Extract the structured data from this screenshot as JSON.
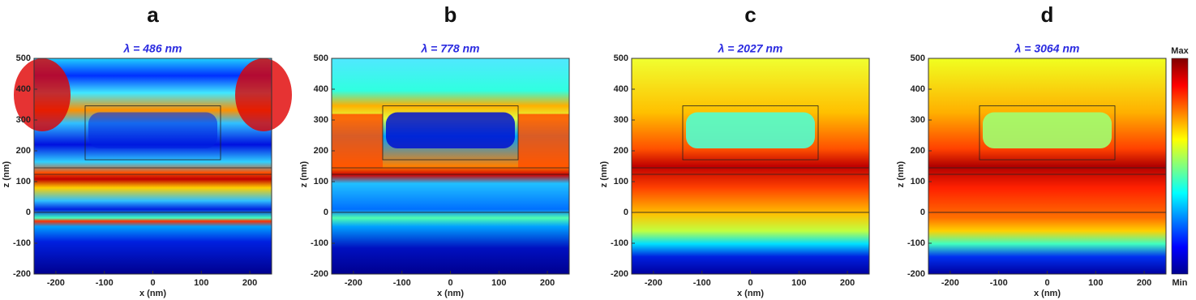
{
  "chart_data": [
    {
      "type": "heatmap",
      "title": "a",
      "subtitle": "λ = 486 nm",
      "xlabel": "x (nm)",
      "ylabel": "z (nm)",
      "xlim": [
        -245,
        245
      ],
      "ylim": [
        -200,
        500
      ],
      "xticks": [
        -200,
        -100,
        0,
        100,
        200
      ],
      "yticks": [
        -200,
        -100,
        0,
        100,
        200,
        300,
        400,
        500
      ]
    },
    {
      "type": "heatmap",
      "title": "b",
      "subtitle": "λ = 778 nm",
      "xlabel": "x (nm)",
      "ylabel": "z (nm)",
      "xlim": [
        -245,
        245
      ],
      "ylim": [
        -200,
        500
      ],
      "xticks": [
        -200,
        -100,
        0,
        100,
        200
      ],
      "yticks": [
        -200,
        -100,
        0,
        100,
        200,
        300,
        400,
        500
      ]
    },
    {
      "type": "heatmap",
      "title": "c",
      "subtitle": "λ = 2027 nm",
      "xlabel": "x (nm)",
      "ylabel": "z (nm)",
      "xlim": [
        -245,
        245
      ],
      "ylim": [
        -200,
        500
      ],
      "xticks": [
        -200,
        -100,
        0,
        100,
        200
      ],
      "yticks": [
        -200,
        -100,
        0,
        100,
        200,
        300,
        400,
        500
      ]
    },
    {
      "type": "heatmap",
      "title": "d",
      "subtitle": "λ = 3064 nm",
      "xlabel": "x (nm)",
      "ylabel": "z (nm)",
      "xlim": [
        -245,
        245
      ],
      "ylim": [
        -200,
        500
      ],
      "xticks": [
        -200,
        -100,
        0,
        100,
        200
      ],
      "yticks": [
        -200,
        -100,
        0,
        100,
        200,
        300,
        400,
        500
      ],
      "colormap": "jet",
      "colorbar": {
        "max_label": "Max",
        "min_label": "Min"
      }
    }
  ]
}
